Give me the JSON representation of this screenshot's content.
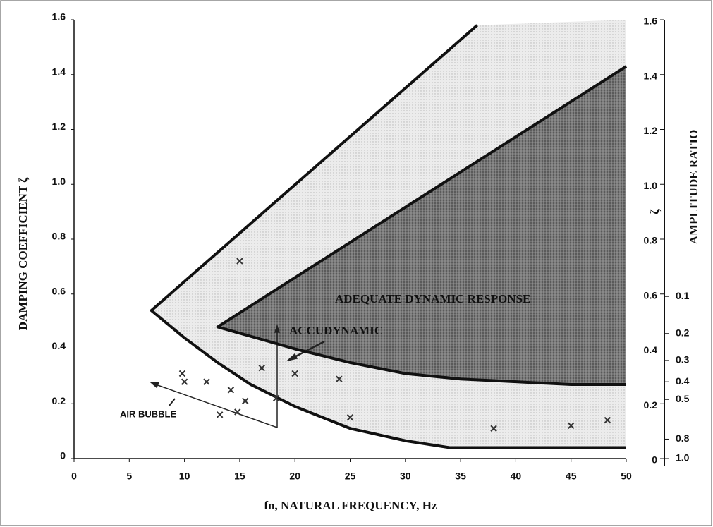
{
  "chart_data": {
    "type": "scatter",
    "xlabel": "fn, NATURAL FREQUENCY, Hz",
    "ylabel": "DAMPING COEFFICIENT ζ",
    "y2label": "AMPLITUDE RATIO",
    "y2symbol": "ζ",
    "xlim": [
      0,
      50
    ],
    "xticks": [
      0,
      5,
      10,
      15,
      20,
      25,
      30,
      35,
      40,
      45,
      50
    ],
    "ylim": [
      0,
      1.6
    ],
    "yticks": [
      0,
      0.2,
      0.4,
      0.6,
      0.8,
      {
        "value": 1,
        "label": "1.0"
      },
      1.2,
      1.4,
      1.6
    ],
    "amplitude_ratio_ticks": [
      0.1,
      0.2,
      0.3,
      0.4,
      0.5,
      0.8,
      {
        "value": 1,
        "label": "1.0"
      }
    ],
    "boundaries": [
      {
        "x": [
          36.5,
          7,
          10,
          13,
          16,
          20,
          25,
          30,
          34,
          50
        ],
        "y": [
          1.58,
          0.54,
          0.44,
          0.35,
          0.27,
          0.19,
          0.11,
          0.065,
          0.04,
          0.04
        ]
      },
      {
        "name": "ADEQUATE DYNAMIC RESPONSE",
        "x": [
          50,
          13,
          20,
          25,
          30,
          35,
          40,
          45,
          50
        ],
        "y": [
          1.43,
          0.48,
          0.4,
          0.35,
          0.31,
          0.29,
          0.28,
          0.27,
          0.27
        ]
      }
    ],
    "points": {
      "x": [
        15,
        9.8,
        10,
        12,
        14.2,
        15.5,
        14.8,
        13.2,
        17,
        20,
        24,
        25,
        38,
        45,
        48.3,
        18.3
      ],
      "y": [
        0.72,
        0.31,
        0.28,
        0.28,
        0.25,
        0.21,
        0.17,
        0.16,
        0.33,
        0.31,
        0.29,
        0.15,
        0.11,
        0.12,
        0.14,
        0.22
      ]
    },
    "annotations": [
      "ACCUDYNAMIC",
      "AIR BUBBLE"
    ]
  }
}
